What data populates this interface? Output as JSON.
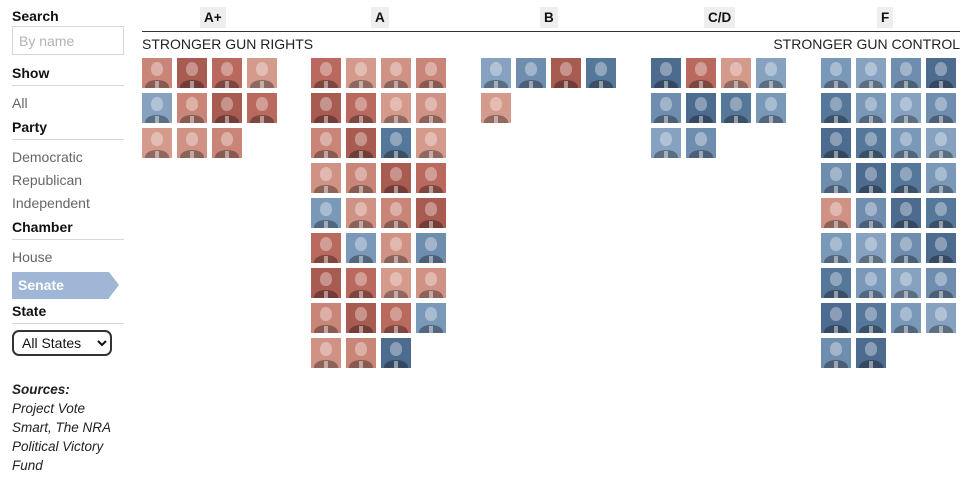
{
  "sidebar": {
    "search": {
      "heading": "Search",
      "placeholder": "By name",
      "value": ""
    },
    "show": {
      "heading": "Show",
      "items": [
        "All"
      ]
    },
    "party": {
      "heading": "Party",
      "items": [
        "Democratic",
        "Republican",
        "Independent"
      ]
    },
    "chamber": {
      "heading": "Chamber",
      "items": [
        "House",
        "Senate"
      ],
      "active": "Senate"
    },
    "state": {
      "heading": "State",
      "selected": "All States"
    },
    "sources": {
      "title": "Sources:",
      "text": "Project Vote Smart, The NRA Political Victory Fund"
    }
  },
  "grades": [
    "A+",
    "A",
    "B",
    "C/D",
    "F"
  ],
  "axis": {
    "left": "STRONGER GUN RIGHTS",
    "right": "STRONGER GUN CONTROL"
  },
  "columns": [
    {
      "grade": "A+",
      "members": [
        "R",
        "R",
        "R",
        "R",
        "D",
        "R",
        "R",
        "R",
        "R",
        "R",
        "R"
      ]
    },
    {
      "grade": "A",
      "members": [
        "R",
        "R",
        "R",
        "R",
        "R",
        "R",
        "R",
        "R",
        "R",
        "R",
        "D",
        "R",
        "R",
        "R",
        "R",
        "R",
        "D",
        "R",
        "R",
        "R",
        "R",
        "D",
        "R",
        "D",
        "R",
        "R",
        "R",
        "R",
        "R",
        "R",
        "R",
        "D",
        "R",
        "R",
        "D"
      ]
    },
    {
      "grade": "B",
      "members": [
        "D",
        "D",
        "R",
        "D",
        "R"
      ]
    },
    {
      "grade": "C/D",
      "members": [
        "D",
        "R",
        "R",
        "D",
        "D",
        "D",
        "D",
        "D",
        "D",
        "D"
      ]
    },
    {
      "grade": "F",
      "members": [
        "D",
        "D",
        "D",
        "D",
        "D",
        "D",
        "D",
        "D",
        "D",
        "D",
        "D",
        "D",
        "D",
        "D",
        "D",
        "D",
        "R",
        "D",
        "D",
        "D",
        "D",
        "D",
        "D",
        "D",
        "D",
        "D",
        "D",
        "D",
        "D",
        "D",
        "D",
        "D",
        "D",
        "D"
      ]
    }
  ],
  "party_colors": {
    "R": "#c98578",
    "D": "#6f8dae"
  }
}
